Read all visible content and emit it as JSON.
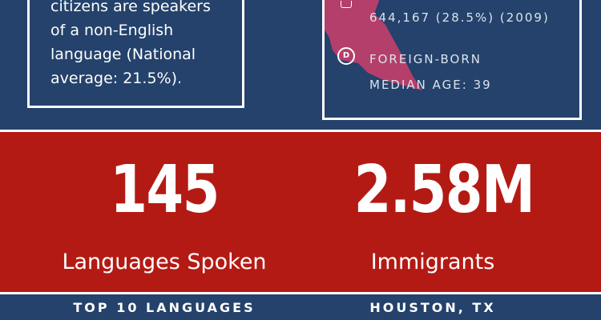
{
  "left_box": {
    "lines": [
      "citizens are speakers",
      "of a non-English",
      "language (National",
      "average: 21.5%)."
    ]
  },
  "right_box": {
    "stat_line1": "644,167 (28.5%) (2009)",
    "stat_line2": "FOREIGN-BORN",
    "stat_line3": "MEDIAN AGE: 39",
    "icon_top": "household-icon",
    "icon_bottom": "foreign-born-icon",
    "map_color": "#c43f6a"
  },
  "stats": [
    {
      "number": "145",
      "label": "Languages Spoken"
    },
    {
      "number": "2.58M",
      "label": "Immigrants"
    }
  ],
  "footer": {
    "left": "TOP 10 LANGUAGES",
    "right": "HOUSTON, TX"
  },
  "colors": {
    "navy": "#24426b",
    "red": "#b41a14",
    "white": "#ffffff"
  }
}
